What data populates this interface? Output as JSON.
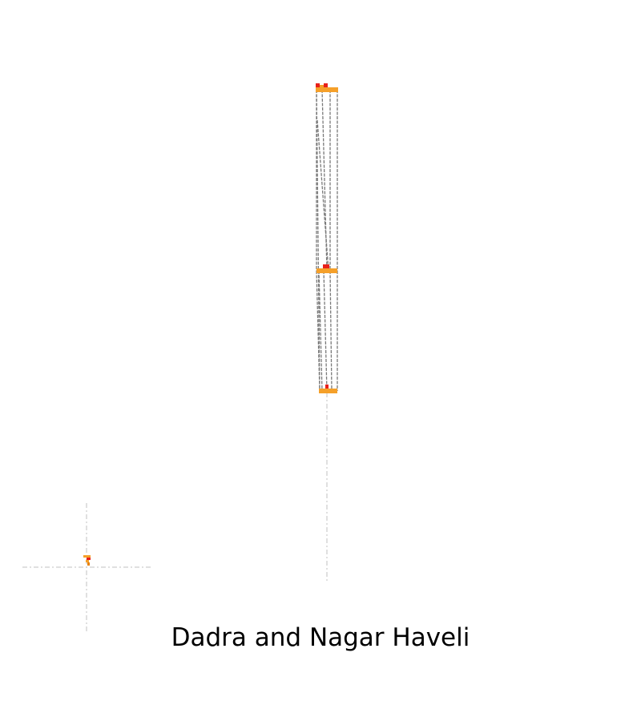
{
  "map": {
    "title": "Dadra and Nagar Haveli"
  },
  "colors": {
    "region_fill": "#f5a02a",
    "region_stroke": "#e8830c",
    "highlight_fill": "#e8201a",
    "projection_line": "#7a7a7a",
    "guide_line": "#d5d5d5",
    "background": "#ffffff"
  }
}
